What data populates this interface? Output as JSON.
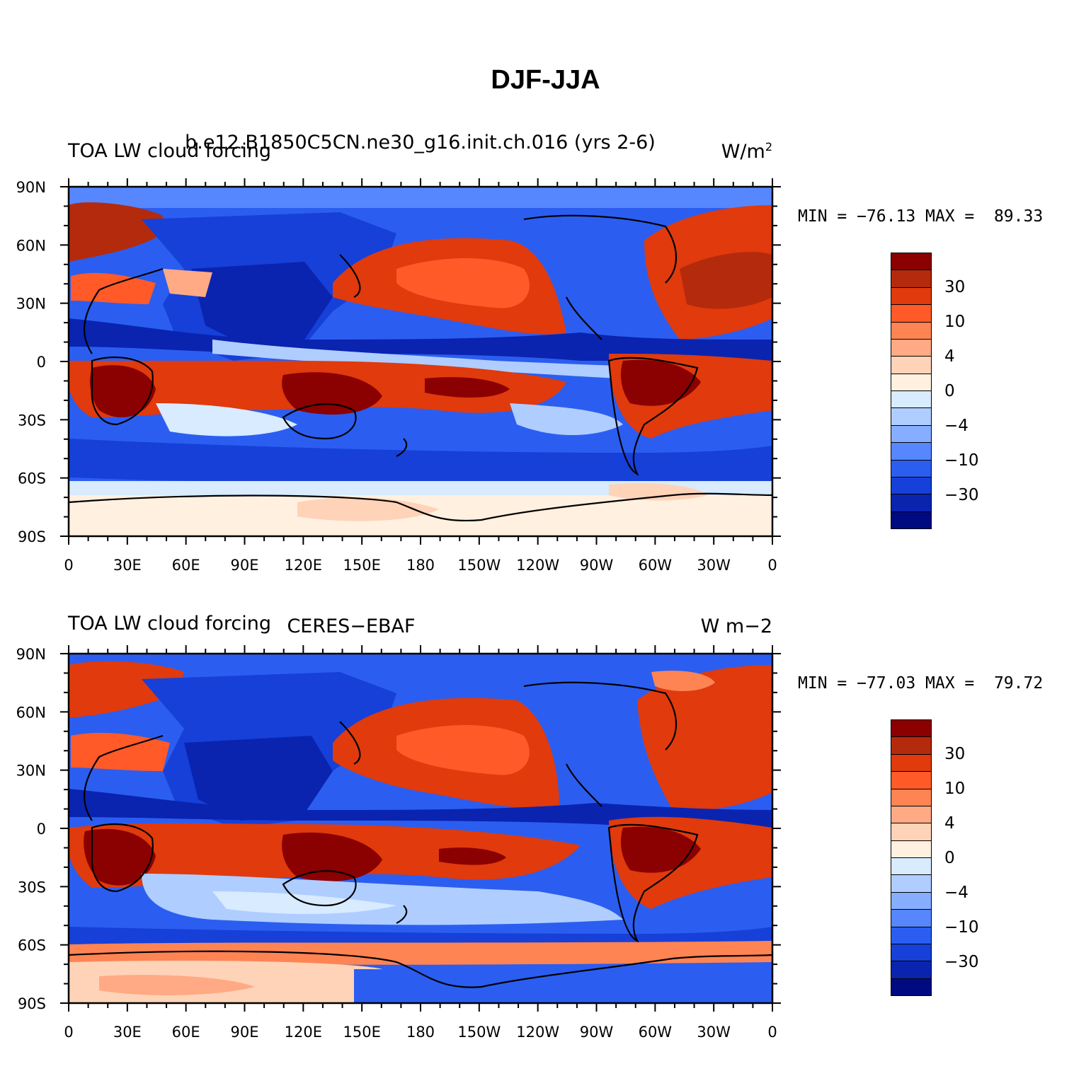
{
  "title": "DJF-JJA",
  "colors": {
    "levels": [
      "#8b0000",
      "#b42a0c",
      "#e03a0d",
      "#ff5a28",
      "#ff8454",
      "#ffaa84",
      "#ffd3b8",
      "#fff0e0",
      "#d8ebff",
      "#afcdff",
      "#86adff",
      "#5687ff",
      "#2b5ef0",
      "#1640d8",
      "#0a24b0",
      "#000a80"
    ],
    "coast": "#000000"
  },
  "panels": [
    {
      "title_left": "TOA LW cloud forcing",
      "title_center": "b.e12.B1850C5CN.ne30_g16.init.ch.016 (yrs 2-6)",
      "units": "W/m",
      "units_sup": "2",
      "minmax": "MIN = −76.13 MAX =  89.33",
      "colorbar_labels": [
        "30",
        "10",
        "4",
        "0",
        "−4",
        "−10",
        "−30"
      ]
    },
    {
      "title_left": "TOA LW cloud forcing",
      "title_center": "CERES−EBAF",
      "units": "W m−2",
      "minmax": "MIN = −77.03 MAX =  79.72",
      "colorbar_labels": [
        "30",
        "10",
        "4",
        "0",
        "−4",
        "−10",
        "−30"
      ]
    }
  ],
  "axes": {
    "lat_labels": [
      "90N",
      "60N",
      "30N",
      "0",
      "30S",
      "60S",
      "90S"
    ],
    "lon_labels": [
      "0",
      "30E",
      "60E",
      "90E",
      "120E",
      "150E",
      "180",
      "150W",
      "120W",
      "90W",
      "60W",
      "30W",
      "0"
    ]
  }
}
